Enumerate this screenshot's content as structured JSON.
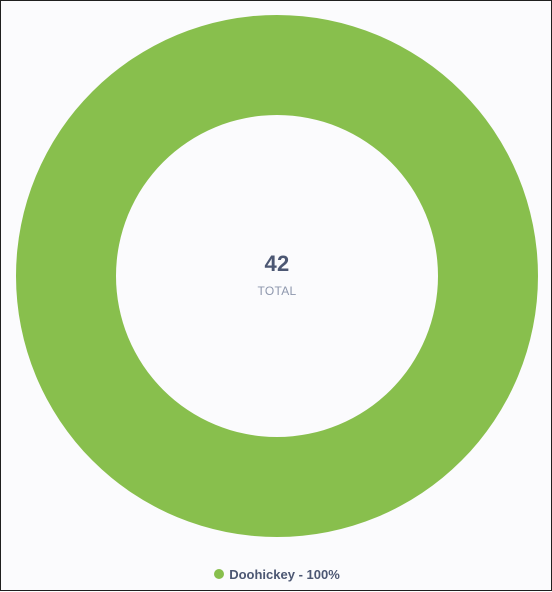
{
  "chart_data": {
    "type": "pie",
    "donut": true,
    "categories": [
      "Doohickey"
    ],
    "values": [
      42
    ],
    "colors": [
      "#88bf4d"
    ],
    "center": {
      "value": "42",
      "label": "TOTAL"
    },
    "legend": {
      "placement": "bottom",
      "items": [
        {
          "label": "Doohickey - 100%",
          "color": "#88bf4d"
        }
      ]
    }
  }
}
